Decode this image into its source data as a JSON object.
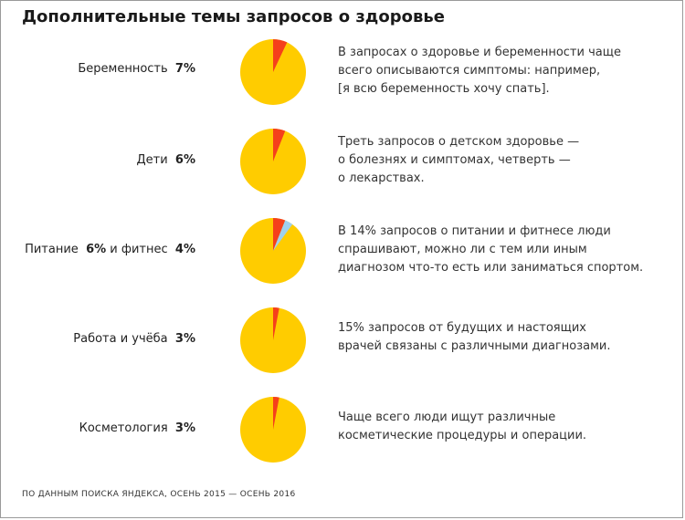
{
  "title": "Дополнительные темы запросов о здоровье",
  "footer": "ПО ДАННЫМ ПОИСКА ЯНДЕКСА, ОСЕНЬ 2015 — ОСЕНЬ 2016",
  "colors": {
    "pie_base": "#ffcc00",
    "red": "#f5401b",
    "blue": "#9fd0ee"
  },
  "chart_data": [
    {
      "type": "pie",
      "label": "Беременность",
      "value_text": "7%",
      "slices": [
        {
          "value": 7,
          "color": "#f5401b"
        }
      ],
      "description": [
        "В запросах о здоровье и беременности чаще",
        "всего описываются симптомы: например,",
        "[я всю беременность хочу спать]."
      ]
    },
    {
      "type": "pie",
      "label": "Дети",
      "value_text": "6%",
      "slices": [
        {
          "value": 6,
          "color": "#f5401b"
        }
      ],
      "description": [
        "Треть запросов о детском здоровье —",
        "о болезнях и симптомах, четверть —",
        "о лекарствах."
      ]
    },
    {
      "type": "pie",
      "label": "Питание",
      "value_text": "6%",
      "label2": "и фитнес",
      "value2_text": "4%",
      "slices": [
        {
          "value": 6,
          "color": "#f5401b"
        },
        {
          "value": 4,
          "color": "#9fd0ee"
        }
      ],
      "description": [
        "В 14% запросов о питании и фитнесе люди",
        "спрашивают, можно ли с тем или иным",
        "диагнозом что-то есть или заниматься спортом."
      ]
    },
    {
      "type": "pie",
      "label": "Работа и учёба",
      "value_text": "3%",
      "slices": [
        {
          "value": 3,
          "color": "#f5401b"
        }
      ],
      "description": [
        "15% запросов от будущих и настоящих",
        "врачей связаны с различными диагнозами."
      ]
    },
    {
      "type": "pie",
      "label": "Косметология",
      "value_text": "3%",
      "slices": [
        {
          "value": 3,
          "color": "#f5401b"
        }
      ],
      "description": [
        "Чаще всего люди ищут различные",
        "косметические процедуры и операции."
      ]
    }
  ]
}
